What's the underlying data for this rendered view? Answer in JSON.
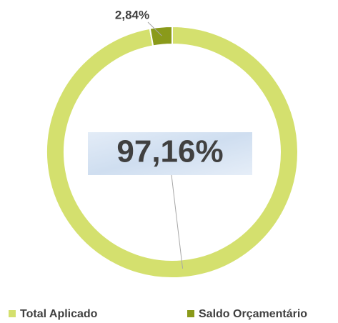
{
  "chart_data": {
    "type": "donut",
    "categories": [
      "Total Aplicado",
      "Saldo Orçamentário"
    ],
    "values": [
      97.16,
      2.84
    ],
    "value_labels": [
      "97,16%",
      "2,84%"
    ],
    "colors": [
      "#d4e06e",
      "#8a9a1a"
    ],
    "legend": "bottom"
  }
}
